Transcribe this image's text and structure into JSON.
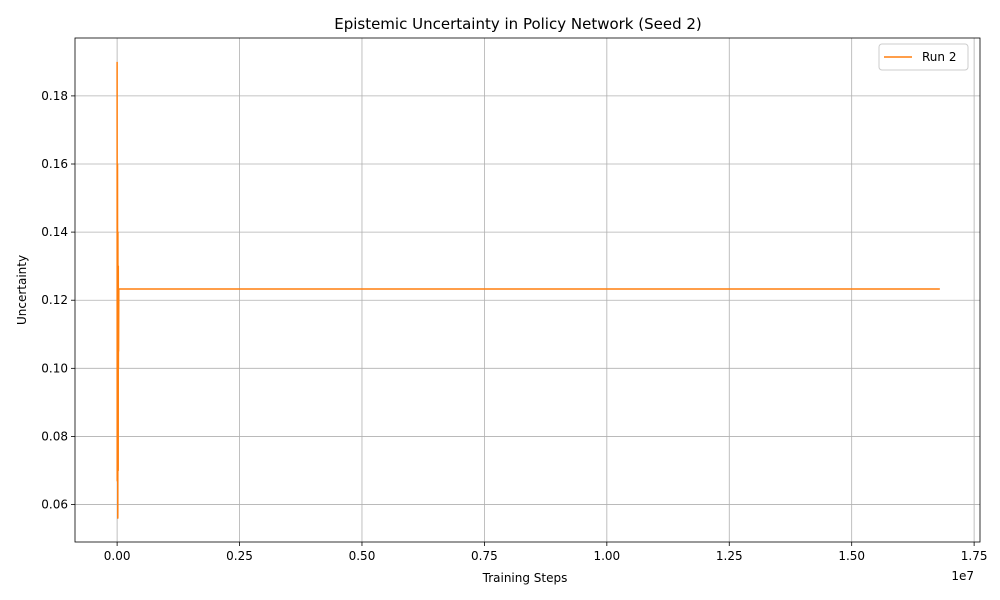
{
  "chart_data": {
    "type": "line",
    "title": "Epistemic Uncertainty in Policy Network (Seed 2)",
    "xlabel": "Training Steps",
    "ylabel": "Uncertainty",
    "x_offset_label": "1e7",
    "x_scale": 10000000,
    "xlim": [
      -860000,
      17620000
    ],
    "ylim": [
      0.049,
      0.197
    ],
    "x_ticks": [
      0,
      2500000,
      5000000,
      7500000,
      10000000,
      12500000,
      15000000,
      17500000
    ],
    "x_tick_labels": [
      "0.00",
      "0.25",
      "0.50",
      "0.75",
      "1.00",
      "1.25",
      "1.50",
      "1.75"
    ],
    "y_ticks": [
      0.06,
      0.08,
      0.1,
      0.12,
      0.14,
      0.16,
      0.18
    ],
    "y_tick_labels": [
      "0.06",
      "0.08",
      "0.10",
      "0.12",
      "0.14",
      "0.16",
      "0.18"
    ],
    "grid": true,
    "legend_position": "top-right",
    "series": [
      {
        "name": "Run 2",
        "color": "#ff7f0e",
        "x": [
          0,
          2000,
          4000,
          6000,
          8000,
          10000,
          12000,
          14000,
          16000,
          18000,
          20000,
          22000,
          24000,
          26000,
          28000,
          30000,
          34000,
          40000,
          60000,
          100000,
          1000000,
          5000000,
          10000000,
          15000000,
          16800000
        ],
        "y": [
          0.19,
          0.067,
          0.15,
          0.072,
          0.16,
          0.085,
          0.12,
          0.056,
          0.14,
          0.094,
          0.11,
          0.07,
          0.13,
          0.1,
          0.1233,
          0.105,
          0.1233,
          0.1233,
          0.1233,
          0.1233,
          0.1233,
          0.1233,
          0.1233,
          0.1233,
          0.1233
        ]
      }
    ]
  }
}
